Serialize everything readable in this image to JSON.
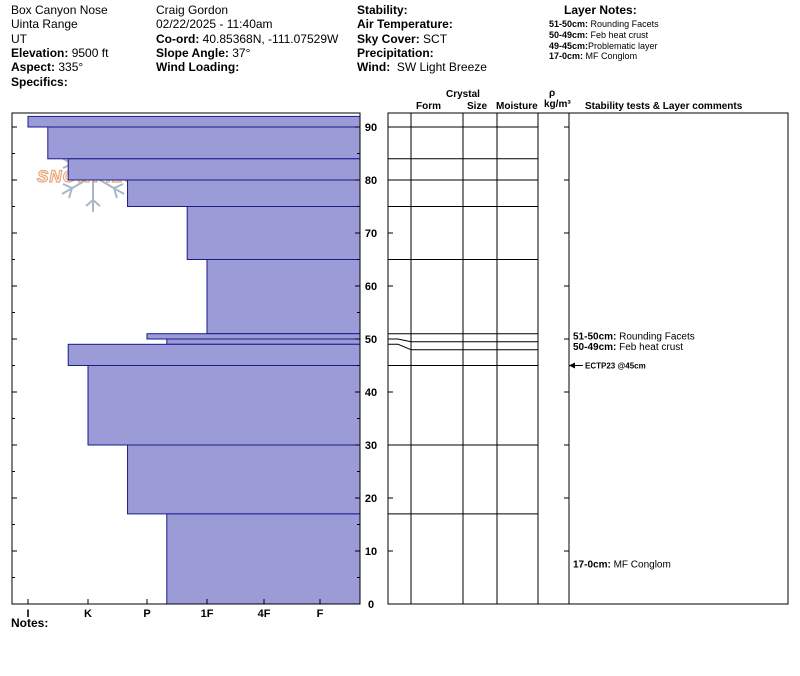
{
  "site": {
    "location": "Box Canyon Nose",
    "range": "Uinta Range",
    "state": "UT",
    "elevation_label": "Elevation:",
    "elevation": "9500 ft",
    "aspect_label": "Aspect:",
    "aspect": "335°",
    "specifics_label": "Specifics:"
  },
  "observer": {
    "name": "Craig Gordon",
    "datetime": "02/22/2025 - 11:40am",
    "coord_label": "Co-ord:",
    "coord": "40.85368N, -111.07529W",
    "slope_label": "Slope Angle:",
    "slope": "37°",
    "wind_loading_label": "Wind Loading:"
  },
  "conditions": {
    "stability_label": "Stability:",
    "air_temp_label": "Air Temperature:",
    "sky_label": "Sky Cover:",
    "sky": "SCT",
    "precip_label": "Precipitation:",
    "wind_label": "Wind:",
    "wind": "SW Light Breeze"
  },
  "layer_notes": {
    "title": "Layer Notes:",
    "items": [
      {
        "range": "51-50cm:",
        "note": "Rounding Facets"
      },
      {
        "range": "50-49cm:",
        "note": "Feb heat crust"
      },
      {
        "range": "49-45cm:",
        "note": "Problematic layer"
      },
      {
        "range": "17-0cm:",
        "note": "MF Conglom"
      }
    ]
  },
  "table_header": {
    "crystal": "Crystal",
    "form": "Form",
    "size": "Size",
    "moisture": "Moisture",
    "rho": "ρ",
    "density_unit": "kg/m³",
    "comments": "Stability tests & Layer comments"
  },
  "logo": {
    "text": "SNOWPILOT"
  },
  "notes_label": "Notes:",
  "profile_comments": [
    {
      "depth": 50.5,
      "range": "51-50cm:",
      "text": "Rounding Facets"
    },
    {
      "depth": 48.5,
      "range": "50-49cm:",
      "text": "Feb heat crust"
    },
    {
      "depth": 45,
      "range": "",
      "text": "ECTP23 @45cm"
    },
    {
      "depth": 7.5,
      "range": "17-0cm:",
      "text": "MF Conglom"
    }
  ],
  "colors": {
    "layer_fill": "#9b9bd8",
    "layer_stroke": "#1a1a8c",
    "logo": "#e8a878",
    "flake": "#a8b8c8"
  },
  "chart_data": {
    "type": "bar",
    "title": "",
    "xlabel": "",
    "ylabel": "",
    "hardness_scale": [
      "I",
      "K",
      "P",
      "1F",
      "4F",
      "F"
    ],
    "depth_ticks": [
      0,
      10,
      20,
      30,
      40,
      50,
      60,
      70,
      80,
      90
    ],
    "ylim": [
      0,
      92
    ],
    "grid": false,
    "layers": [
      {
        "top": 92,
        "bottom": 90,
        "hardness": 0.0
      },
      {
        "top": 90,
        "bottom": 84,
        "hardness": 0.33
      },
      {
        "top": 84,
        "bottom": 80,
        "hardness": 0.67
      },
      {
        "top": 80,
        "bottom": 75,
        "hardness": 1.67
      },
      {
        "top": 75,
        "bottom": 65,
        "hardness": 2.67
      },
      {
        "top": 65,
        "bottom": 51,
        "hardness": 3.0
      },
      {
        "top": 51,
        "bottom": 50,
        "hardness": 2.0
      },
      {
        "top": 50,
        "bottom": 49,
        "hardness": 2.33
      },
      {
        "top": 49,
        "bottom": 45,
        "hardness": 0.67
      },
      {
        "top": 45,
        "bottom": 30,
        "hardness": 1.0
      },
      {
        "top": 30,
        "bottom": 17,
        "hardness": 1.67
      },
      {
        "top": 17,
        "bottom": 0,
        "hardness": 2.33
      }
    ],
    "layer_boundaries": [
      90,
      84,
      80,
      75,
      65,
      51,
      50,
      49,
      45,
      30,
      17
    ]
  }
}
